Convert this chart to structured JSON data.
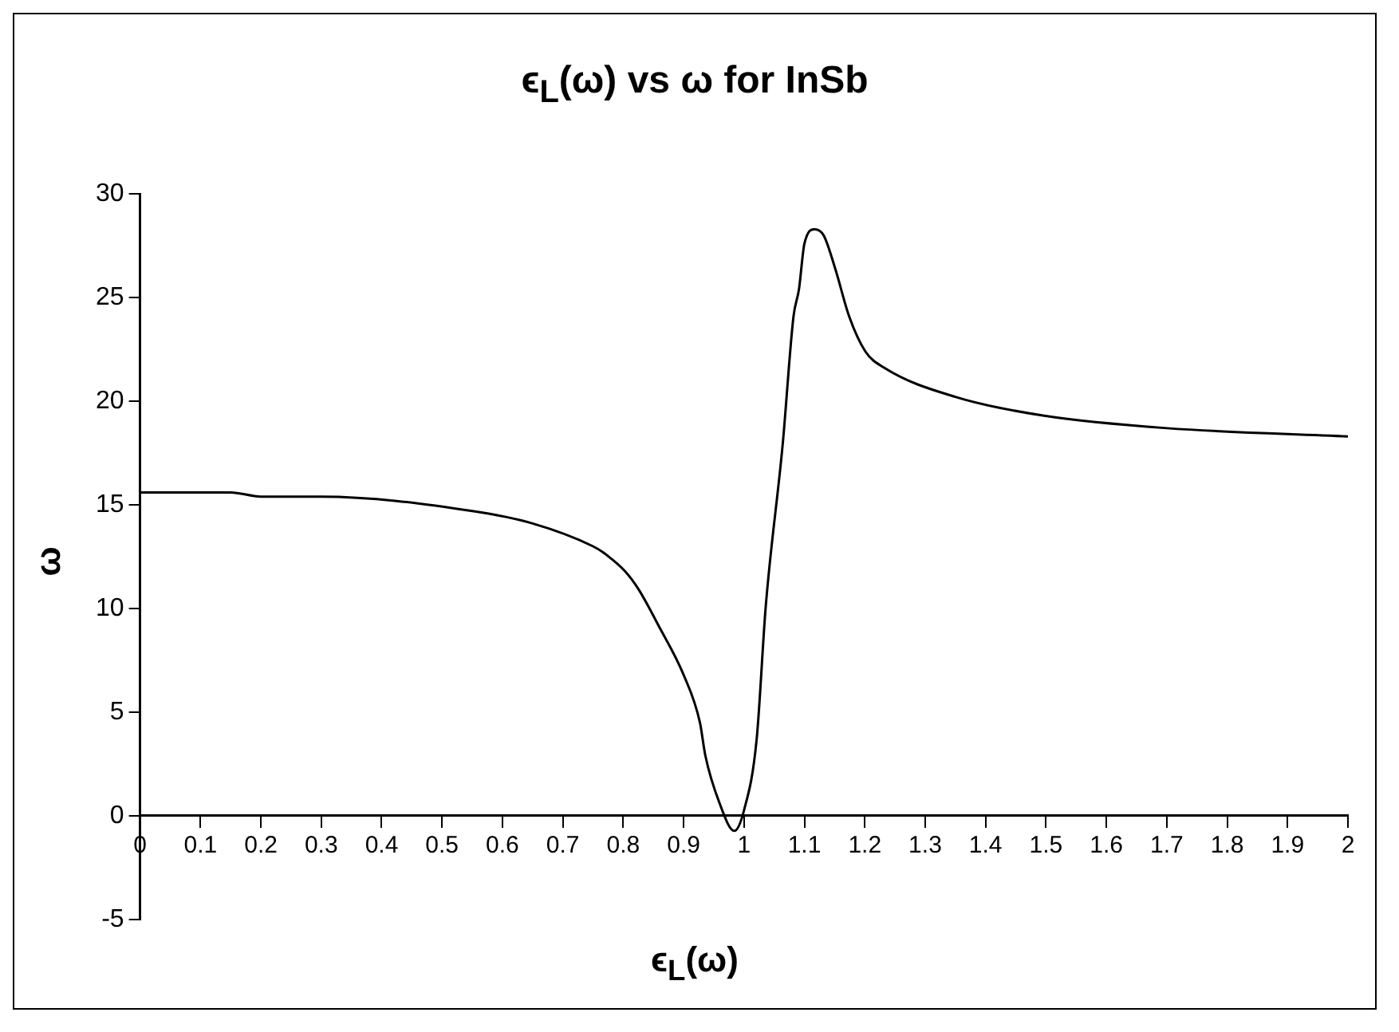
{
  "chart_data": {
    "type": "line",
    "title": "ϵ$_{L}$(ω) vs ω  for InSb",
    "xlabel": "ϵ$_{L}$(ω)",
    "ylabel": "ω",
    "x": [
      0,
      0.15,
      0.2,
      0.3,
      0.55,
      0.65,
      0.75,
      0.767,
      0.803,
      0.826,
      0.858,
      0.9,
      0.927,
      0.936,
      0.959,
      0.984,
      1.0,
      1.021,
      1.036,
      1.064,
      1.082,
      1.091,
      1.1,
      1.117,
      1.132,
      1.151,
      1.174,
      1.201,
      1.233,
      1.351,
      1.497,
      1.7,
      2
    ],
    "series": [
      {
        "color": "#000000",
        "values": [
          15.6,
          15.6,
          15.4,
          15.4,
          14.7,
          14.1,
          13.0,
          12.7,
          11.8,
          10.9,
          9.2,
          6.8,
          4.5,
          2.9,
          0.65,
          -0.73,
          0.26,
          3.7,
          10.1,
          17.9,
          24.1,
          25.4,
          27.6,
          28.3,
          28.0,
          26.4,
          24.1,
          22.4,
          21.6,
          20.2,
          19.3,
          18.7,
          18.3
        ]
      }
    ],
    "xlim": [
      0,
      2
    ],
    "xticks": [
      0,
      0.1,
      0.2,
      0.3,
      0.4,
      0.5,
      0.6,
      0.7,
      0.8,
      0.9,
      1,
      1.1,
      1.2,
      1.3,
      1.4,
      1.5,
      1.6,
      1.7,
      1.8,
      1.9,
      2
    ],
    "ylim": [
      -5,
      30
    ],
    "yticks": [
      -5,
      0,
      5,
      10,
      15,
      20,
      25,
      30
    ],
    "grid": false,
    "legend": false,
    "marker": "none",
    "line_style": "solid"
  }
}
